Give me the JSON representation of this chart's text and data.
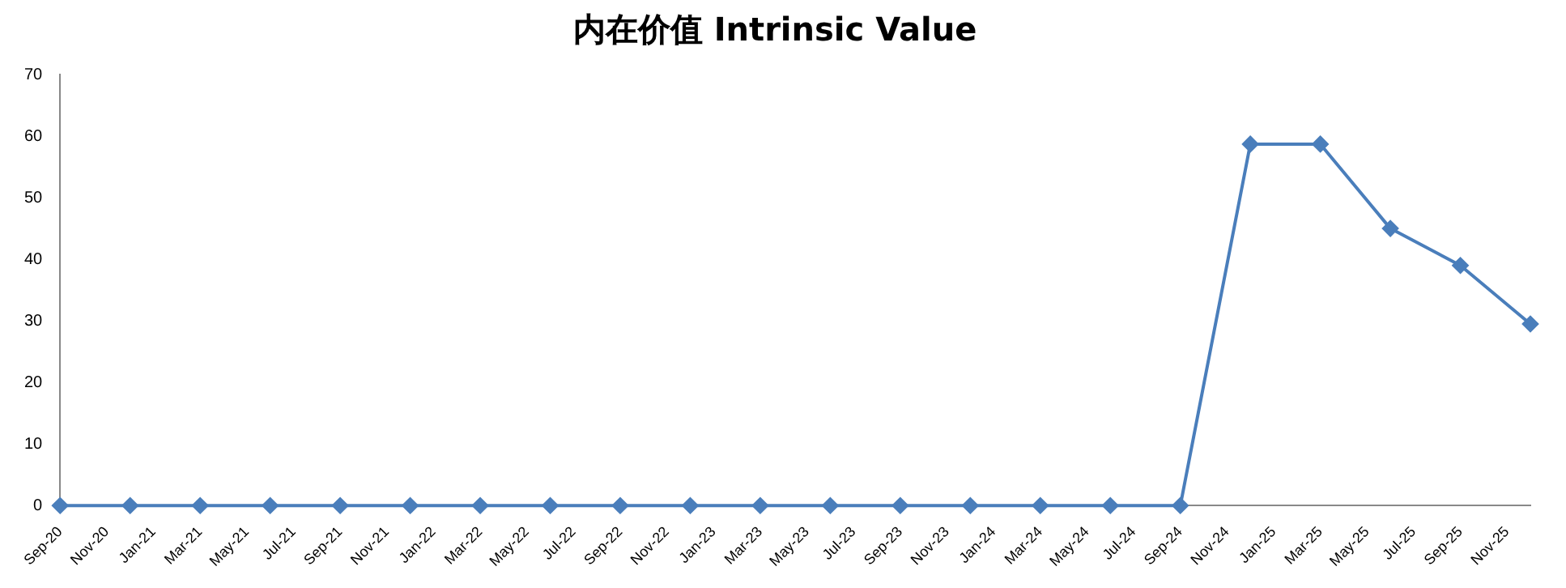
{
  "chart_data": {
    "type": "line",
    "title": "内在价值 Intrinsic Value",
    "x": [
      "2020-09",
      "2020-12",
      "2021-03",
      "2021-06",
      "2021-09",
      "2021-12",
      "2022-03",
      "2022-06",
      "2022-09",
      "2022-12",
      "2023-03",
      "2023-06",
      "2023-09",
      "2023-12",
      "2024-03",
      "2024-06",
      "2024-09",
      "2024-12",
      "2025-03",
      "2025-06",
      "2025-09",
      "2025-12"
    ],
    "series": [
      {
        "color": "#4a7ebb",
        "values": [
          0,
          0,
          0,
          0,
          0,
          0,
          0,
          0,
          0,
          0,
          0,
          0,
          0,
          0,
          0,
          0,
          0,
          58.7,
          58.7,
          45,
          39,
          29.5
        ]
      }
    ],
    "xlim": [
      "2020-09",
      "2025-12"
    ],
    "xticks": [
      {
        "value": "2020-09",
        "label": "Sep-20"
      },
      {
        "value": "2020-11",
        "label": "Nov-20"
      },
      {
        "value": "2021-01",
        "label": "Jan-21"
      },
      {
        "value": "2021-03",
        "label": "Mar-21"
      },
      {
        "value": "2021-05",
        "label": "May-21"
      },
      {
        "value": "2021-07",
        "label": "Jul-21"
      },
      {
        "value": "2021-09",
        "label": "Sep-21"
      },
      {
        "value": "2021-11",
        "label": "Nov-21"
      },
      {
        "value": "2022-01",
        "label": "Jan-22"
      },
      {
        "value": "2022-03",
        "label": "Mar-22"
      },
      {
        "value": "2022-05",
        "label": "May-22"
      },
      {
        "value": "2022-07",
        "label": "Jul-22"
      },
      {
        "value": "2022-09",
        "label": "Sep-22"
      },
      {
        "value": "2022-11",
        "label": "Nov-22"
      },
      {
        "value": "2023-01",
        "label": "Jan-23"
      },
      {
        "value": "2023-03",
        "label": "Mar-23"
      },
      {
        "value": "2023-05",
        "label": "May-23"
      },
      {
        "value": "2023-07",
        "label": "Jul-23"
      },
      {
        "value": "2023-09",
        "label": "Sep-23"
      },
      {
        "value": "2023-11",
        "label": "Nov-23"
      },
      {
        "value": "2024-01",
        "label": "Jan-24"
      },
      {
        "value": "2024-03",
        "label": "Mar-24"
      },
      {
        "value": "2024-05",
        "label": "May-24"
      },
      {
        "value": "2024-07",
        "label": "Jul-24"
      },
      {
        "value": "2024-09",
        "label": "Sep-24"
      },
      {
        "value": "2024-11",
        "label": "Nov-24"
      },
      {
        "value": "2025-01",
        "label": "Jan-25"
      },
      {
        "value": "2025-03",
        "label": "Mar-25"
      },
      {
        "value": "2025-05",
        "label": "May-25"
      },
      {
        "value": "2025-07",
        "label": "Jul-25"
      },
      {
        "value": "2025-09",
        "label": "Sep-25"
      },
      {
        "value": "2025-11",
        "label": "Nov-25"
      }
    ],
    "ylim": [
      0,
      70
    ],
    "yticks": [
      0,
      10,
      20,
      30,
      40,
      50,
      60,
      70
    ],
    "grid": false,
    "legend": false,
    "marker": "diamond",
    "line_style": "solid"
  }
}
